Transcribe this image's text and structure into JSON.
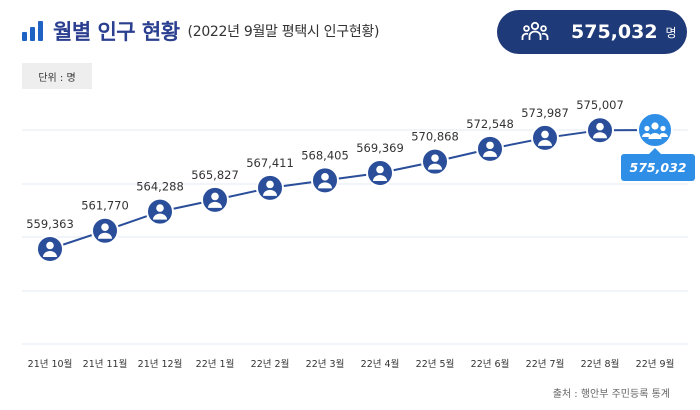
{
  "header": {
    "title": "월별 인구 현황",
    "subtitle": "(2022년 9월말 평택시 인구현황)",
    "total_value": "575,032",
    "total_unit": "명"
  },
  "unit_label": "단위 : 명",
  "source": "출처 : 행안부 주민등록 통계",
  "colors": {
    "accent": "#1e63c4",
    "marker": "#2a4e9a",
    "highlight": "#2f8fe6",
    "pill": "#1f3a78",
    "line": "#2a4e9a",
    "grid": "#e3e8f2"
  },
  "icons": {
    "title": "bar-chart-icon",
    "total": "people-group-icon",
    "marker": "person-icon"
  },
  "chart_data": {
    "type": "line",
    "categories": [
      "21년 10월",
      "21년 11월",
      "21년 12월",
      "22년 1월",
      "22년 2월",
      "22년 3월",
      "22년 4월",
      "22년 5월",
      "22년 6월",
      "22년 7월",
      "22년 8월",
      "22년 9월"
    ],
    "values": [
      559363,
      561770,
      564288,
      565827,
      567411,
      568405,
      569369,
      570868,
      572548,
      573987,
      575007,
      575032
    ],
    "value_labels": [
      "559,363",
      "561,770",
      "564,288",
      "565,827",
      "567,411",
      "568,405",
      "569,369",
      "570,868",
      "572,548",
      "573,987",
      "575,007",
      "575,032"
    ],
    "grid": true,
    "highlight_last": true
  }
}
